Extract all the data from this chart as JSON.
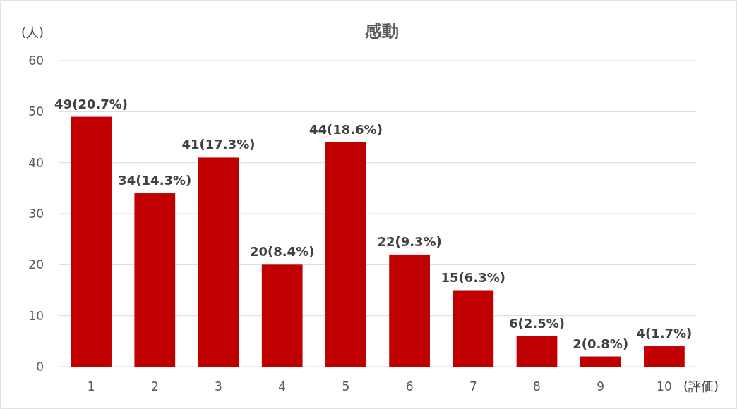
{
  "chart_data": {
    "type": "bar",
    "title": "感動",
    "ylabel": "(人)",
    "xlabel": "(評価)",
    "categories": [
      "1",
      "2",
      "3",
      "4",
      "5",
      "6",
      "7",
      "8",
      "9",
      "10"
    ],
    "values": [
      49,
      34,
      41,
      20,
      44,
      22,
      15,
      6,
      2,
      4
    ],
    "value_labels": [
      "49(20.7%)",
      "34(14.3%)",
      "41(17.3%)",
      "20(8.4%)",
      "44(18.6%)",
      "22(9.3%)",
      "15(6.3%)",
      "6(2.5%)",
      "2(0.8%)",
      "4(1.7%)"
    ],
    "color": "#c00000",
    "ylim": [
      0,
      60
    ],
    "yticks": [
      0,
      10,
      20,
      30,
      40,
      50,
      60
    ],
    "grid": "y"
  }
}
